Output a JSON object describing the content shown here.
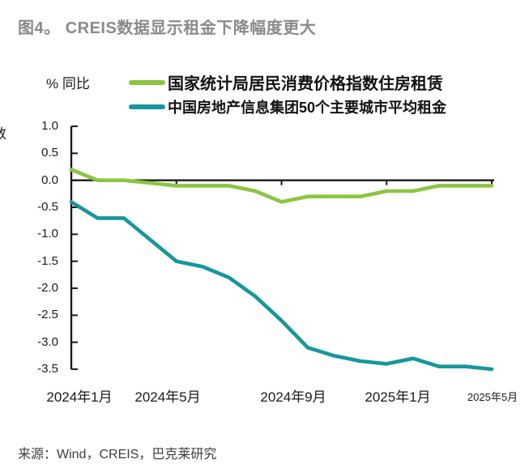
{
  "title": "图4。 CREIS数据显示租金下降幅度更大",
  "y_axis_unit": "% 同比",
  "y_axis_partial_label": "数",
  "legend": [
    {
      "label": "国家统计局居民消费价格指数住房租赁",
      "color": "#8CC540"
    },
    {
      "label": "中国房地产信息集团50个主要城市平均租金",
      "color": "#17969D"
    }
  ],
  "source": "来源：Wind，CREIS，巴克莱研究",
  "colors": {
    "cpi_line": "#8CC540",
    "creis_line": "#17969D",
    "axis": "#1a1a1a",
    "title_gray": "#8a8a8a"
  },
  "chart_data": {
    "type": "line",
    "x": [
      "2024-01",
      "2024-02",
      "2024-03",
      "2024-04",
      "2024-05",
      "2024-06",
      "2024-07",
      "2024-08",
      "2024-09",
      "2024-10",
      "2024-11",
      "2024-12",
      "2025-01",
      "2025-02",
      "2025-03",
      "2025-04",
      "2025-05"
    ],
    "series": [
      {
        "name": "国家统计局居民消费价格指数住房租赁",
        "color": "#8CC540",
        "values": [
          0.2,
          0.0,
          0.0,
          -0.05,
          -0.1,
          -0.1,
          -0.1,
          -0.2,
          -0.4,
          -0.3,
          -0.3,
          -0.3,
          -0.2,
          -0.2,
          -0.1,
          -0.1,
          -0.1
        ]
      },
      {
        "name": "中国房地产信息集团50个主要城市平均租金",
        "color": "#17969D",
        "values": [
          -0.4,
          -0.7,
          -0.7,
          -1.1,
          -1.5,
          -1.6,
          -1.8,
          -2.15,
          -2.6,
          -3.1,
          -3.25,
          -3.35,
          -3.4,
          -3.3,
          -3.45,
          -3.45,
          -3.5
        ]
      }
    ],
    "title": "图4。 CREIS数据显示租金下降幅度更大",
    "xlabel": "",
    "ylabel": "% 同比",
    "ylim": [
      -3.5,
      1.0
    ],
    "y_ticks": [
      "1.0",
      "0.5",
      "0.0",
      "-0.5",
      "-1.0",
      "-1.5",
      "-2.0",
      "-2.5",
      "-3.0",
      "-3.5"
    ],
    "x_tick_labels": [
      "2024年1月",
      "2024年5月",
      "2024年9月",
      "2025年1月",
      "2025年5月"
    ],
    "x_tick_indices": [
      0,
      4,
      8,
      12,
      16
    ],
    "grid": false,
    "legend_position": "top",
    "axis_color": "#1a1a1a"
  }
}
